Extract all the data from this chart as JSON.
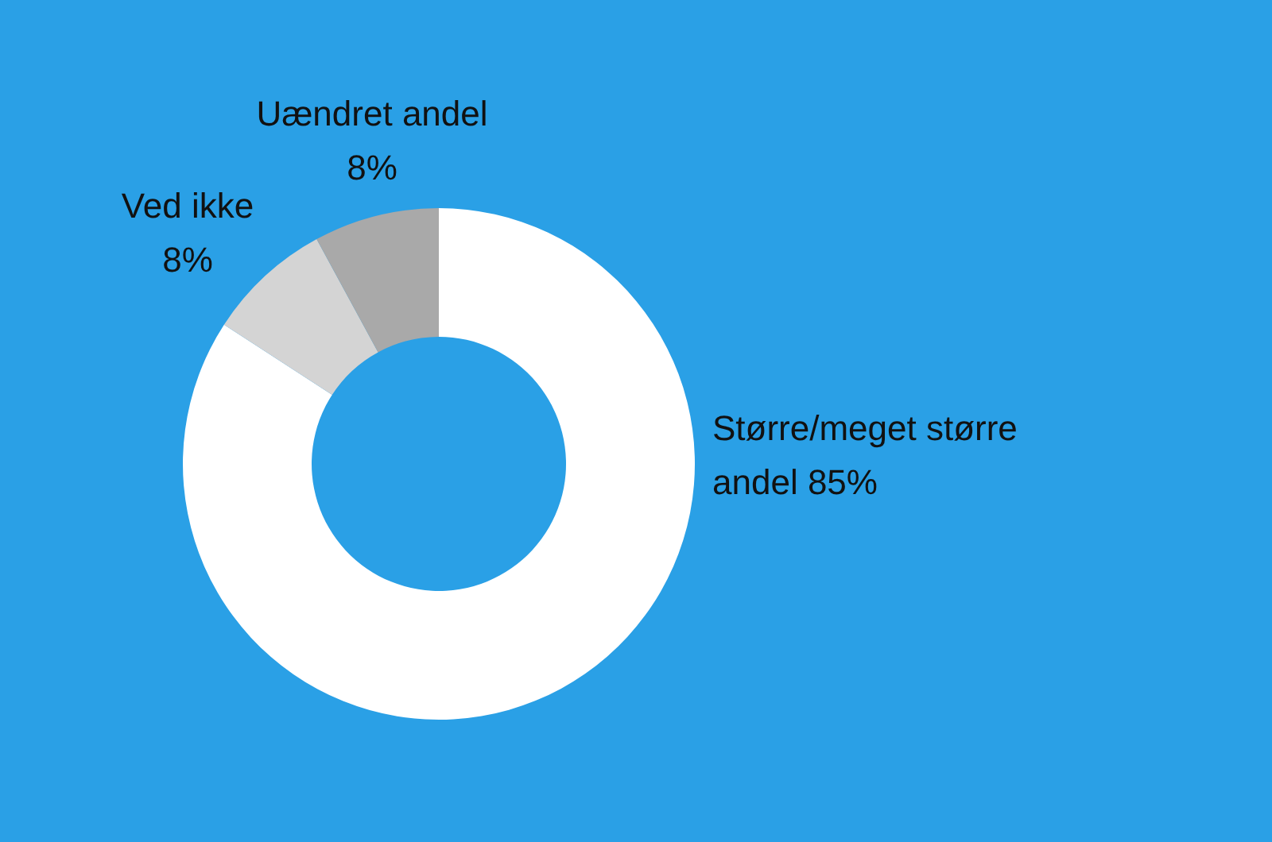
{
  "chart_data": {
    "type": "donut",
    "categories": [
      "Større/meget større andel",
      "Ved ikke",
      "Uændret andel"
    ],
    "values": [
      85,
      8,
      8
    ],
    "value_labels": [
      "85%",
      "8%",
      "8%"
    ],
    "colors": [
      "#ffffff",
      "#d4d4d4",
      "#a9a9a9"
    ]
  }
}
